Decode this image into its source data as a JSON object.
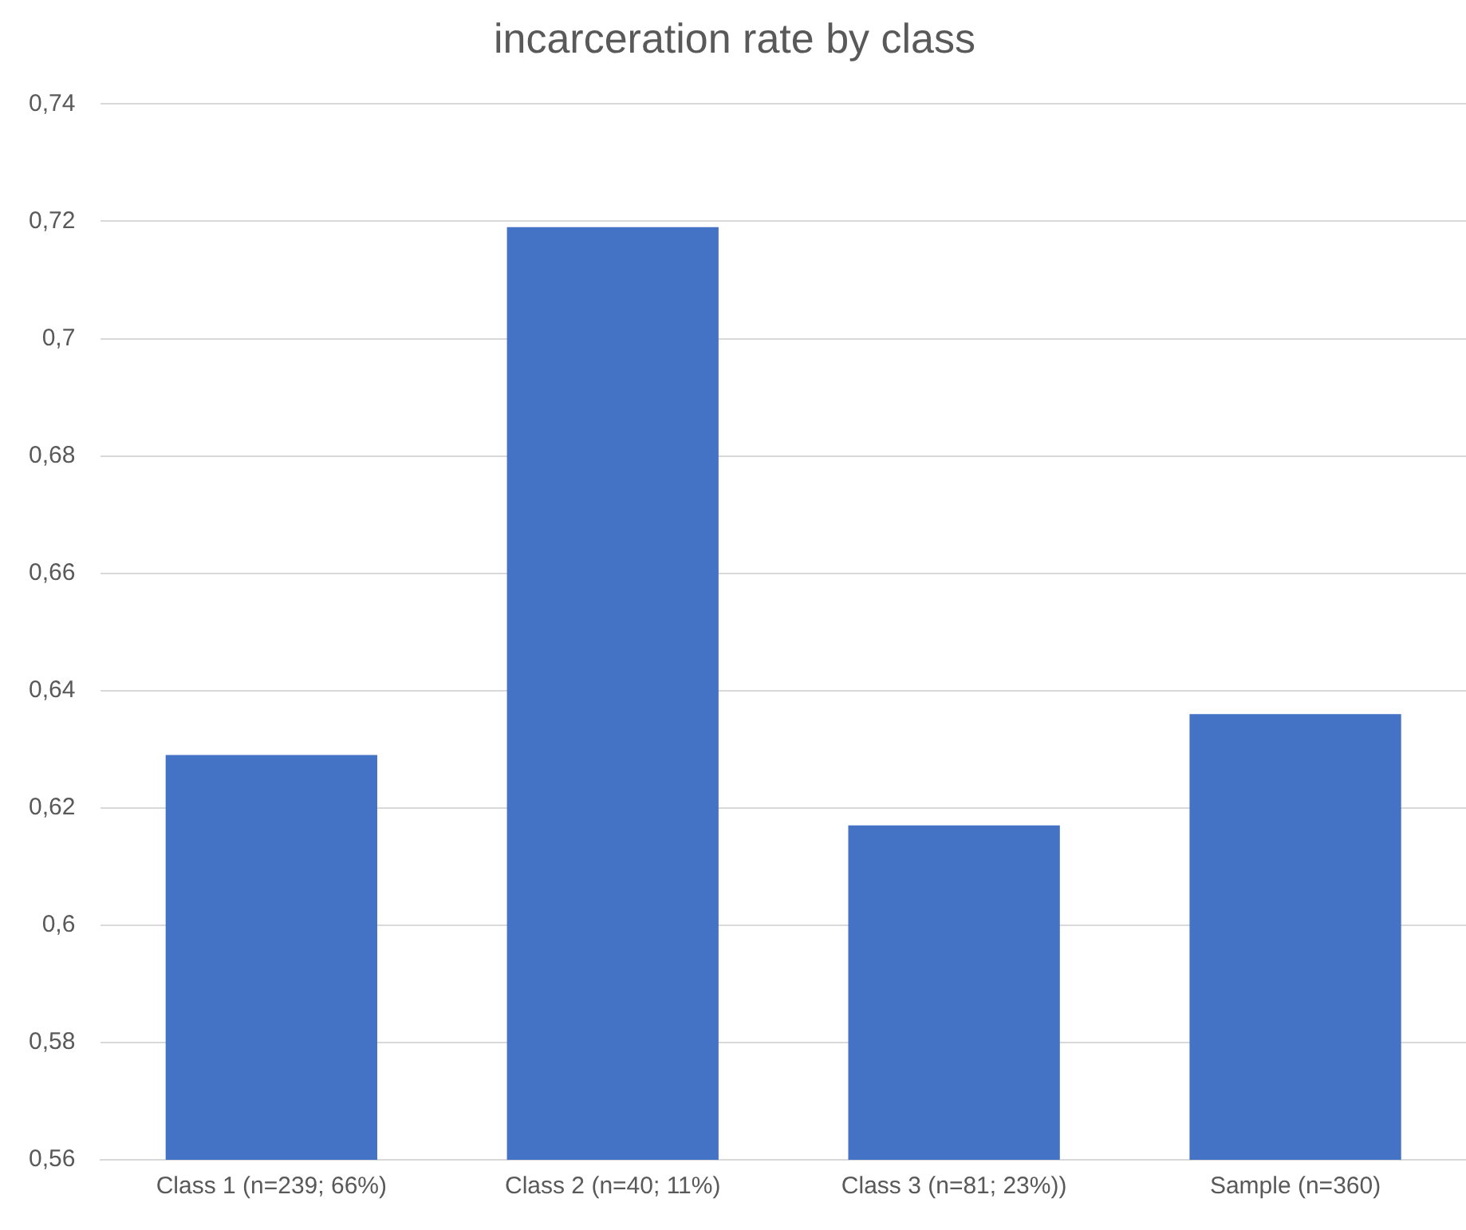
{
  "chart_data": {
    "type": "bar",
    "title": "incarceration rate by class",
    "categories": [
      "Class 1 (n=239; 66%)",
      "Class 2 (n=40; 11%)",
      "Class 3 (n=81; 23%))",
      "Sample (n=360)"
    ],
    "values": [
      0.629,
      0.719,
      0.617,
      0.636
    ],
    "color": "#4472c4",
    "ylim": [
      0.56,
      0.74
    ],
    "yticks": [
      {
        "value": 0.56,
        "label": "0,56"
      },
      {
        "value": 0.58,
        "label": "0,58"
      },
      {
        "value": 0.6,
        "label": "0,6"
      },
      {
        "value": 0.62,
        "label": "0,62"
      },
      {
        "value": 0.64,
        "label": "0,64"
      },
      {
        "value": 0.66,
        "label": "0,66"
      },
      {
        "value": 0.68,
        "label": "0,68"
      },
      {
        "value": 0.7,
        "label": "0,7"
      },
      {
        "value": 0.72,
        "label": "0,72"
      },
      {
        "value": 0.74,
        "label": "0,74"
      }
    ],
    "grid": "y"
  }
}
